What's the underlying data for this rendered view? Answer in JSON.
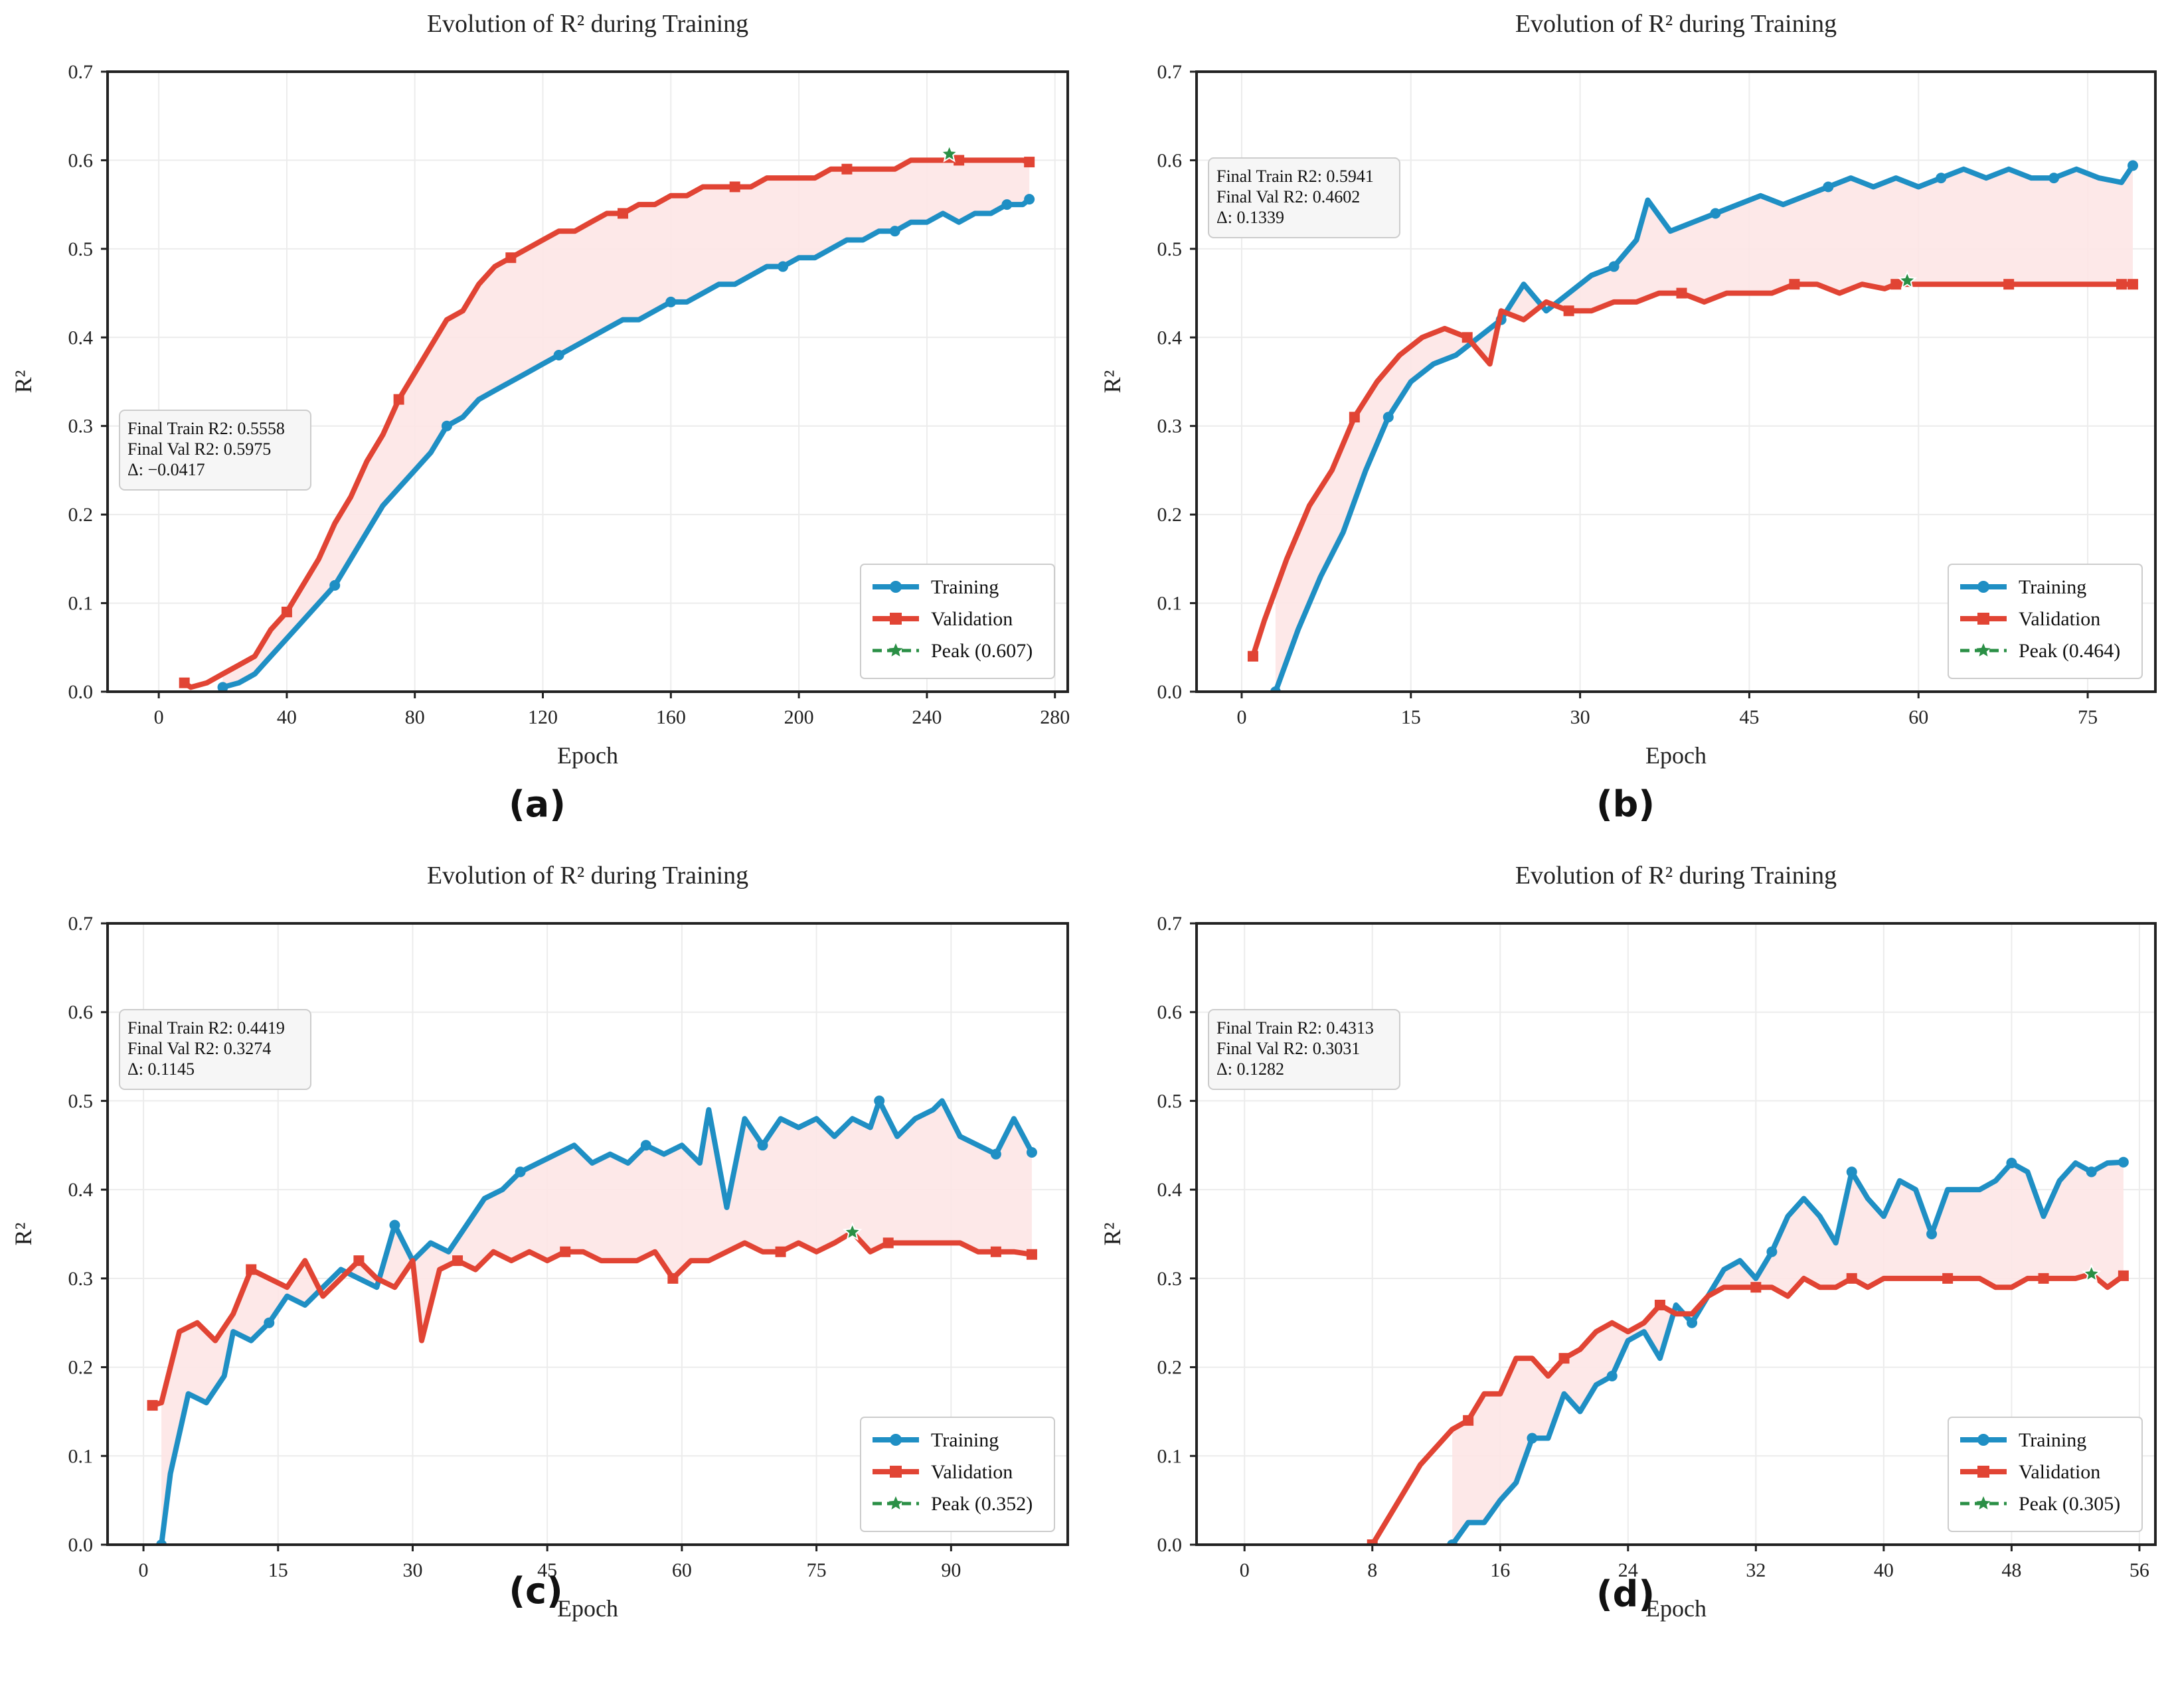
{
  "colors": {
    "training": "#1f8fc4",
    "validation": "#e14434",
    "peak": "#2a8f45",
    "fill": "#fde6e6",
    "grid": "#ececec",
    "axis": "#222222",
    "textbox_bg": "#f6f6f6",
    "textbox_border": "#cccccc"
  },
  "chart_data": [
    {
      "panel_label": "(a)",
      "type": "line",
      "title": "Evolution of R² during Training",
      "xlabel": "Epoch",
      "ylabel": "R²",
      "xlim": [
        -16,
        284
      ],
      "ylim": [
        0.0,
        0.7
      ],
      "xticks": [
        0,
        40,
        80,
        120,
        160,
        200,
        240,
        280
      ],
      "yticks": [
        0.0,
        0.1,
        0.2,
        0.3,
        0.4,
        0.5,
        0.6,
        0.7
      ],
      "grid": true,
      "legend_position": "bottom-right",
      "legend": [
        "Training",
        "Validation",
        "Peak (0.607)"
      ],
      "textbox_position": "middle-left",
      "textbox_lines": [
        "Final Train R2: 0.5558",
        "Final Val R2: 0.5975",
        "Δ: −0.0417"
      ],
      "peak": {
        "x": 247,
        "y": 0.607
      },
      "series": [
        {
          "name": "Training",
          "marker": "circle",
          "x": [
            20,
            25,
            30,
            35,
            40,
            45,
            50,
            55,
            60,
            65,
            70,
            75,
            80,
            85,
            90,
            95,
            100,
            105,
            110,
            115,
            120,
            125,
            130,
            135,
            140,
            145,
            150,
            155,
            160,
            165,
            170,
            175,
            180,
            185,
            190,
            195,
            200,
            205,
            210,
            215,
            220,
            225,
            230,
            235,
            240,
            245,
            250,
            255,
            260,
            265,
            270,
            272
          ],
          "y": [
            0.005,
            0.01,
            0.02,
            0.04,
            0.06,
            0.08,
            0.1,
            0.12,
            0.15,
            0.18,
            0.21,
            0.23,
            0.25,
            0.27,
            0.3,
            0.31,
            0.33,
            0.34,
            0.35,
            0.36,
            0.37,
            0.38,
            0.39,
            0.4,
            0.41,
            0.42,
            0.42,
            0.43,
            0.44,
            0.44,
            0.45,
            0.46,
            0.46,
            0.47,
            0.48,
            0.48,
            0.49,
            0.49,
            0.5,
            0.51,
            0.51,
            0.52,
            0.52,
            0.53,
            0.53,
            0.54,
            0.53,
            0.54,
            0.54,
            0.55,
            0.55,
            0.556
          ]
        },
        {
          "name": "Validation",
          "marker": "square",
          "x": [
            8,
            10,
            15,
            20,
            25,
            30,
            35,
            40,
            45,
            50,
            55,
            60,
            65,
            70,
            75,
            80,
            85,
            90,
            95,
            100,
            105,
            110,
            115,
            120,
            125,
            130,
            135,
            140,
            145,
            150,
            155,
            160,
            165,
            170,
            175,
            180,
            185,
            190,
            195,
            200,
            205,
            210,
            215,
            220,
            225,
            230,
            235,
            240,
            245,
            250,
            255,
            260,
            265,
            270,
            272
          ],
          "y": [
            0.01,
            0.005,
            0.01,
            0.02,
            0.03,
            0.04,
            0.07,
            0.09,
            0.12,
            0.15,
            0.19,
            0.22,
            0.26,
            0.29,
            0.33,
            0.36,
            0.39,
            0.42,
            0.43,
            0.46,
            0.48,
            0.49,
            0.5,
            0.51,
            0.52,
            0.52,
            0.53,
            0.54,
            0.54,
            0.55,
            0.55,
            0.56,
            0.56,
            0.57,
            0.57,
            0.57,
            0.57,
            0.58,
            0.58,
            0.58,
            0.58,
            0.59,
            0.59,
            0.59,
            0.59,
            0.59,
            0.6,
            0.6,
            0.6,
            0.6,
            0.6,
            0.6,
            0.6,
            0.6,
            0.598
          ]
        }
      ]
    },
    {
      "panel_label": "(b)",
      "type": "line",
      "title": "Evolution of R² during Training",
      "xlabel": "Epoch",
      "ylabel": "R²",
      "xlim": [
        -4,
        81
      ],
      "ylim": [
        0.0,
        0.7
      ],
      "xticks": [
        0,
        15,
        30,
        45,
        60,
        75
      ],
      "yticks": [
        0.0,
        0.1,
        0.2,
        0.3,
        0.4,
        0.5,
        0.6,
        0.7
      ],
      "grid": true,
      "legend_position": "bottom-right",
      "legend": [
        "Training",
        "Validation",
        "Peak (0.464)"
      ],
      "textbox_position": "top-left",
      "textbox_lines": [
        "Final Train R2: 0.5941",
        "Final Val R2: 0.4602",
        "Δ: 0.1339"
      ],
      "peak": {
        "x": 59,
        "y": 0.464
      },
      "series": [
        {
          "name": "Training",
          "marker": "circle",
          "x": [
            3,
            5,
            7,
            9,
            11,
            13,
            15,
            17,
            19,
            21,
            23,
            25,
            27,
            29,
            31,
            33,
            35,
            36,
            38,
            40,
            42,
            44,
            46,
            48,
            50,
            52,
            54,
            56,
            58,
            60,
            62,
            64,
            66,
            68,
            70,
            72,
            74,
            76,
            78,
            79
          ],
          "y": [
            0.0,
            0.07,
            0.13,
            0.18,
            0.25,
            0.31,
            0.35,
            0.37,
            0.38,
            0.4,
            0.42,
            0.46,
            0.43,
            0.45,
            0.47,
            0.48,
            0.51,
            0.555,
            0.52,
            0.53,
            0.54,
            0.55,
            0.56,
            0.55,
            0.56,
            0.57,
            0.58,
            0.57,
            0.58,
            0.57,
            0.58,
            0.59,
            0.58,
            0.59,
            0.58,
            0.58,
            0.59,
            0.58,
            0.575,
            0.594
          ]
        },
        {
          "name": "Validation",
          "marker": "square",
          "x": [
            1,
            2,
            4,
            6,
            8,
            10,
            12,
            14,
            16,
            18,
            20,
            22,
            23,
            25,
            27,
            29,
            31,
            33,
            35,
            37,
            39,
            41,
            43,
            45,
            47,
            49,
            51,
            53,
            55,
            57,
            58,
            60,
            62,
            64,
            66,
            68,
            70,
            72,
            74,
            76,
            78,
            79
          ],
          "y": [
            0.04,
            0.08,
            0.15,
            0.21,
            0.25,
            0.31,
            0.35,
            0.38,
            0.4,
            0.41,
            0.4,
            0.37,
            0.43,
            0.42,
            0.44,
            0.43,
            0.43,
            0.44,
            0.44,
            0.45,
            0.45,
            0.44,
            0.45,
            0.45,
            0.45,
            0.46,
            0.46,
            0.45,
            0.46,
            0.455,
            0.46,
            0.46,
            0.46,
            0.46,
            0.46,
            0.46,
            0.46,
            0.46,
            0.46,
            0.46,
            0.46,
            0.46
          ]
        }
      ]
    },
    {
      "panel_label": "(c)",
      "type": "line",
      "title": "Evolution of R² during Training",
      "xlabel": "Epoch",
      "ylabel": "R²",
      "xlim": [
        -4,
        103
      ],
      "ylim": [
        0.0,
        0.7
      ],
      "xticks": [
        0,
        15,
        30,
        45,
        60,
        75,
        90
      ],
      "yticks": [
        0.0,
        0.1,
        0.2,
        0.3,
        0.4,
        0.5,
        0.6,
        0.7
      ],
      "grid": true,
      "legend_position": "bottom-right",
      "legend": [
        "Training",
        "Validation",
        "Peak (0.352)"
      ],
      "textbox_position": "top-left",
      "textbox_lines": [
        "Final Train R2: 0.4419",
        "Final Val R2: 0.3274",
        "Δ: 0.1145"
      ],
      "peak": {
        "x": 79,
        "y": 0.352
      },
      "series": [
        {
          "name": "Training",
          "marker": "circle",
          "x": [
            2,
            3,
            5,
            7,
            9,
            10,
            12,
            14,
            16,
            18,
            20,
            22,
            24,
            26,
            28,
            30,
            32,
            34,
            36,
            38,
            40,
            42,
            44,
            46,
            48,
            50,
            52,
            54,
            56,
            58,
            60,
            62,
            63,
            65,
            67,
            69,
            71,
            73,
            75,
            77,
            79,
            81,
            82,
            84,
            86,
            88,
            89,
            91,
            93,
            95,
            97,
            99
          ],
          "y": [
            0.0,
            0.08,
            0.17,
            0.16,
            0.19,
            0.24,
            0.23,
            0.25,
            0.28,
            0.27,
            0.29,
            0.31,
            0.3,
            0.29,
            0.36,
            0.32,
            0.34,
            0.33,
            0.36,
            0.39,
            0.4,
            0.42,
            0.43,
            0.44,
            0.45,
            0.43,
            0.44,
            0.43,
            0.45,
            0.44,
            0.45,
            0.43,
            0.49,
            0.38,
            0.48,
            0.45,
            0.48,
            0.47,
            0.48,
            0.46,
            0.48,
            0.47,
            0.5,
            0.46,
            0.48,
            0.49,
            0.5,
            0.46,
            0.45,
            0.44,
            0.48,
            0.442
          ]
        },
        {
          "name": "Validation",
          "marker": "square",
          "x": [
            1,
            2,
            4,
            6,
            8,
            10,
            12,
            14,
            16,
            18,
            20,
            22,
            24,
            26,
            28,
            30,
            31,
            33,
            35,
            37,
            39,
            41,
            43,
            45,
            47,
            49,
            51,
            53,
            55,
            57,
            59,
            61,
            63,
            65,
            67,
            69,
            71,
            73,
            75,
            77,
            79,
            81,
            83,
            85,
            87,
            89,
            91,
            93,
            95,
            97,
            99
          ],
          "y": [
            0.157,
            0.16,
            0.24,
            0.25,
            0.23,
            0.26,
            0.31,
            0.3,
            0.29,
            0.32,
            0.28,
            0.3,
            0.32,
            0.3,
            0.29,
            0.32,
            0.23,
            0.31,
            0.32,
            0.31,
            0.33,
            0.32,
            0.33,
            0.32,
            0.33,
            0.33,
            0.32,
            0.32,
            0.32,
            0.33,
            0.3,
            0.32,
            0.32,
            0.33,
            0.34,
            0.33,
            0.33,
            0.34,
            0.33,
            0.34,
            0.352,
            0.33,
            0.34,
            0.34,
            0.34,
            0.34,
            0.34,
            0.33,
            0.33,
            0.33,
            0.327
          ]
        }
      ]
    },
    {
      "panel_label": "(d)",
      "type": "line",
      "title": "Evolution of R² during Training",
      "xlabel": "Epoch",
      "ylabel": "R²",
      "xlim": [
        -3,
        57
      ],
      "ylim": [
        0.0,
        0.7
      ],
      "xticks": [
        0,
        8,
        16,
        24,
        32,
        40,
        48,
        56
      ],
      "yticks": [
        0.0,
        0.1,
        0.2,
        0.3,
        0.4,
        0.5,
        0.6,
        0.7
      ],
      "grid": true,
      "legend_position": "bottom-right",
      "legend": [
        "Training",
        "Validation",
        "Peak (0.305)"
      ],
      "textbox_position": "top-left",
      "textbox_lines": [
        "Final Train R2: 0.4313",
        "Final Val R2: 0.3031",
        "Δ: 0.1282"
      ],
      "peak": {
        "x": 53,
        "y": 0.305
      },
      "series": [
        {
          "name": "Training",
          "marker": "circle",
          "x": [
            13,
            14,
            15,
            16,
            17,
            18,
            19,
            20,
            21,
            22,
            23,
            24,
            25,
            26,
            27,
            28,
            29,
            30,
            31,
            32,
            33,
            34,
            35,
            36,
            37,
            38,
            39,
            40,
            41,
            42,
            43,
            44,
            45,
            46,
            47,
            48,
            49,
            50,
            51,
            52,
            53,
            54,
            55
          ],
          "y": [
            0.0,
            0.025,
            0.025,
            0.05,
            0.07,
            0.12,
            0.12,
            0.17,
            0.15,
            0.18,
            0.19,
            0.23,
            0.24,
            0.21,
            0.27,
            0.25,
            0.28,
            0.31,
            0.32,
            0.3,
            0.33,
            0.37,
            0.39,
            0.37,
            0.34,
            0.42,
            0.39,
            0.37,
            0.41,
            0.4,
            0.35,
            0.4,
            0.4,
            0.4,
            0.41,
            0.43,
            0.42,
            0.37,
            0.41,
            0.43,
            0.42,
            0.43,
            0.431
          ]
        },
        {
          "name": "Validation",
          "marker": "square",
          "x": [
            8,
            9,
            10,
            11,
            12,
            13,
            14,
            15,
            16,
            17,
            18,
            19,
            20,
            21,
            22,
            23,
            24,
            25,
            26,
            27,
            28,
            29,
            30,
            31,
            32,
            33,
            34,
            35,
            36,
            37,
            38,
            39,
            40,
            41,
            42,
            43,
            44,
            45,
            46,
            47,
            48,
            49,
            50,
            51,
            52,
            53,
            54,
            55
          ],
          "y": [
            0.0,
            0.03,
            0.06,
            0.09,
            0.11,
            0.13,
            0.14,
            0.17,
            0.17,
            0.21,
            0.21,
            0.19,
            0.21,
            0.22,
            0.24,
            0.25,
            0.24,
            0.25,
            0.27,
            0.26,
            0.26,
            0.28,
            0.29,
            0.29,
            0.29,
            0.29,
            0.28,
            0.3,
            0.29,
            0.29,
            0.3,
            0.29,
            0.3,
            0.3,
            0.3,
            0.3,
            0.3,
            0.3,
            0.3,
            0.29,
            0.29,
            0.3,
            0.3,
            0.3,
            0.3,
            0.305,
            0.29,
            0.303
          ]
        }
      ]
    }
  ]
}
